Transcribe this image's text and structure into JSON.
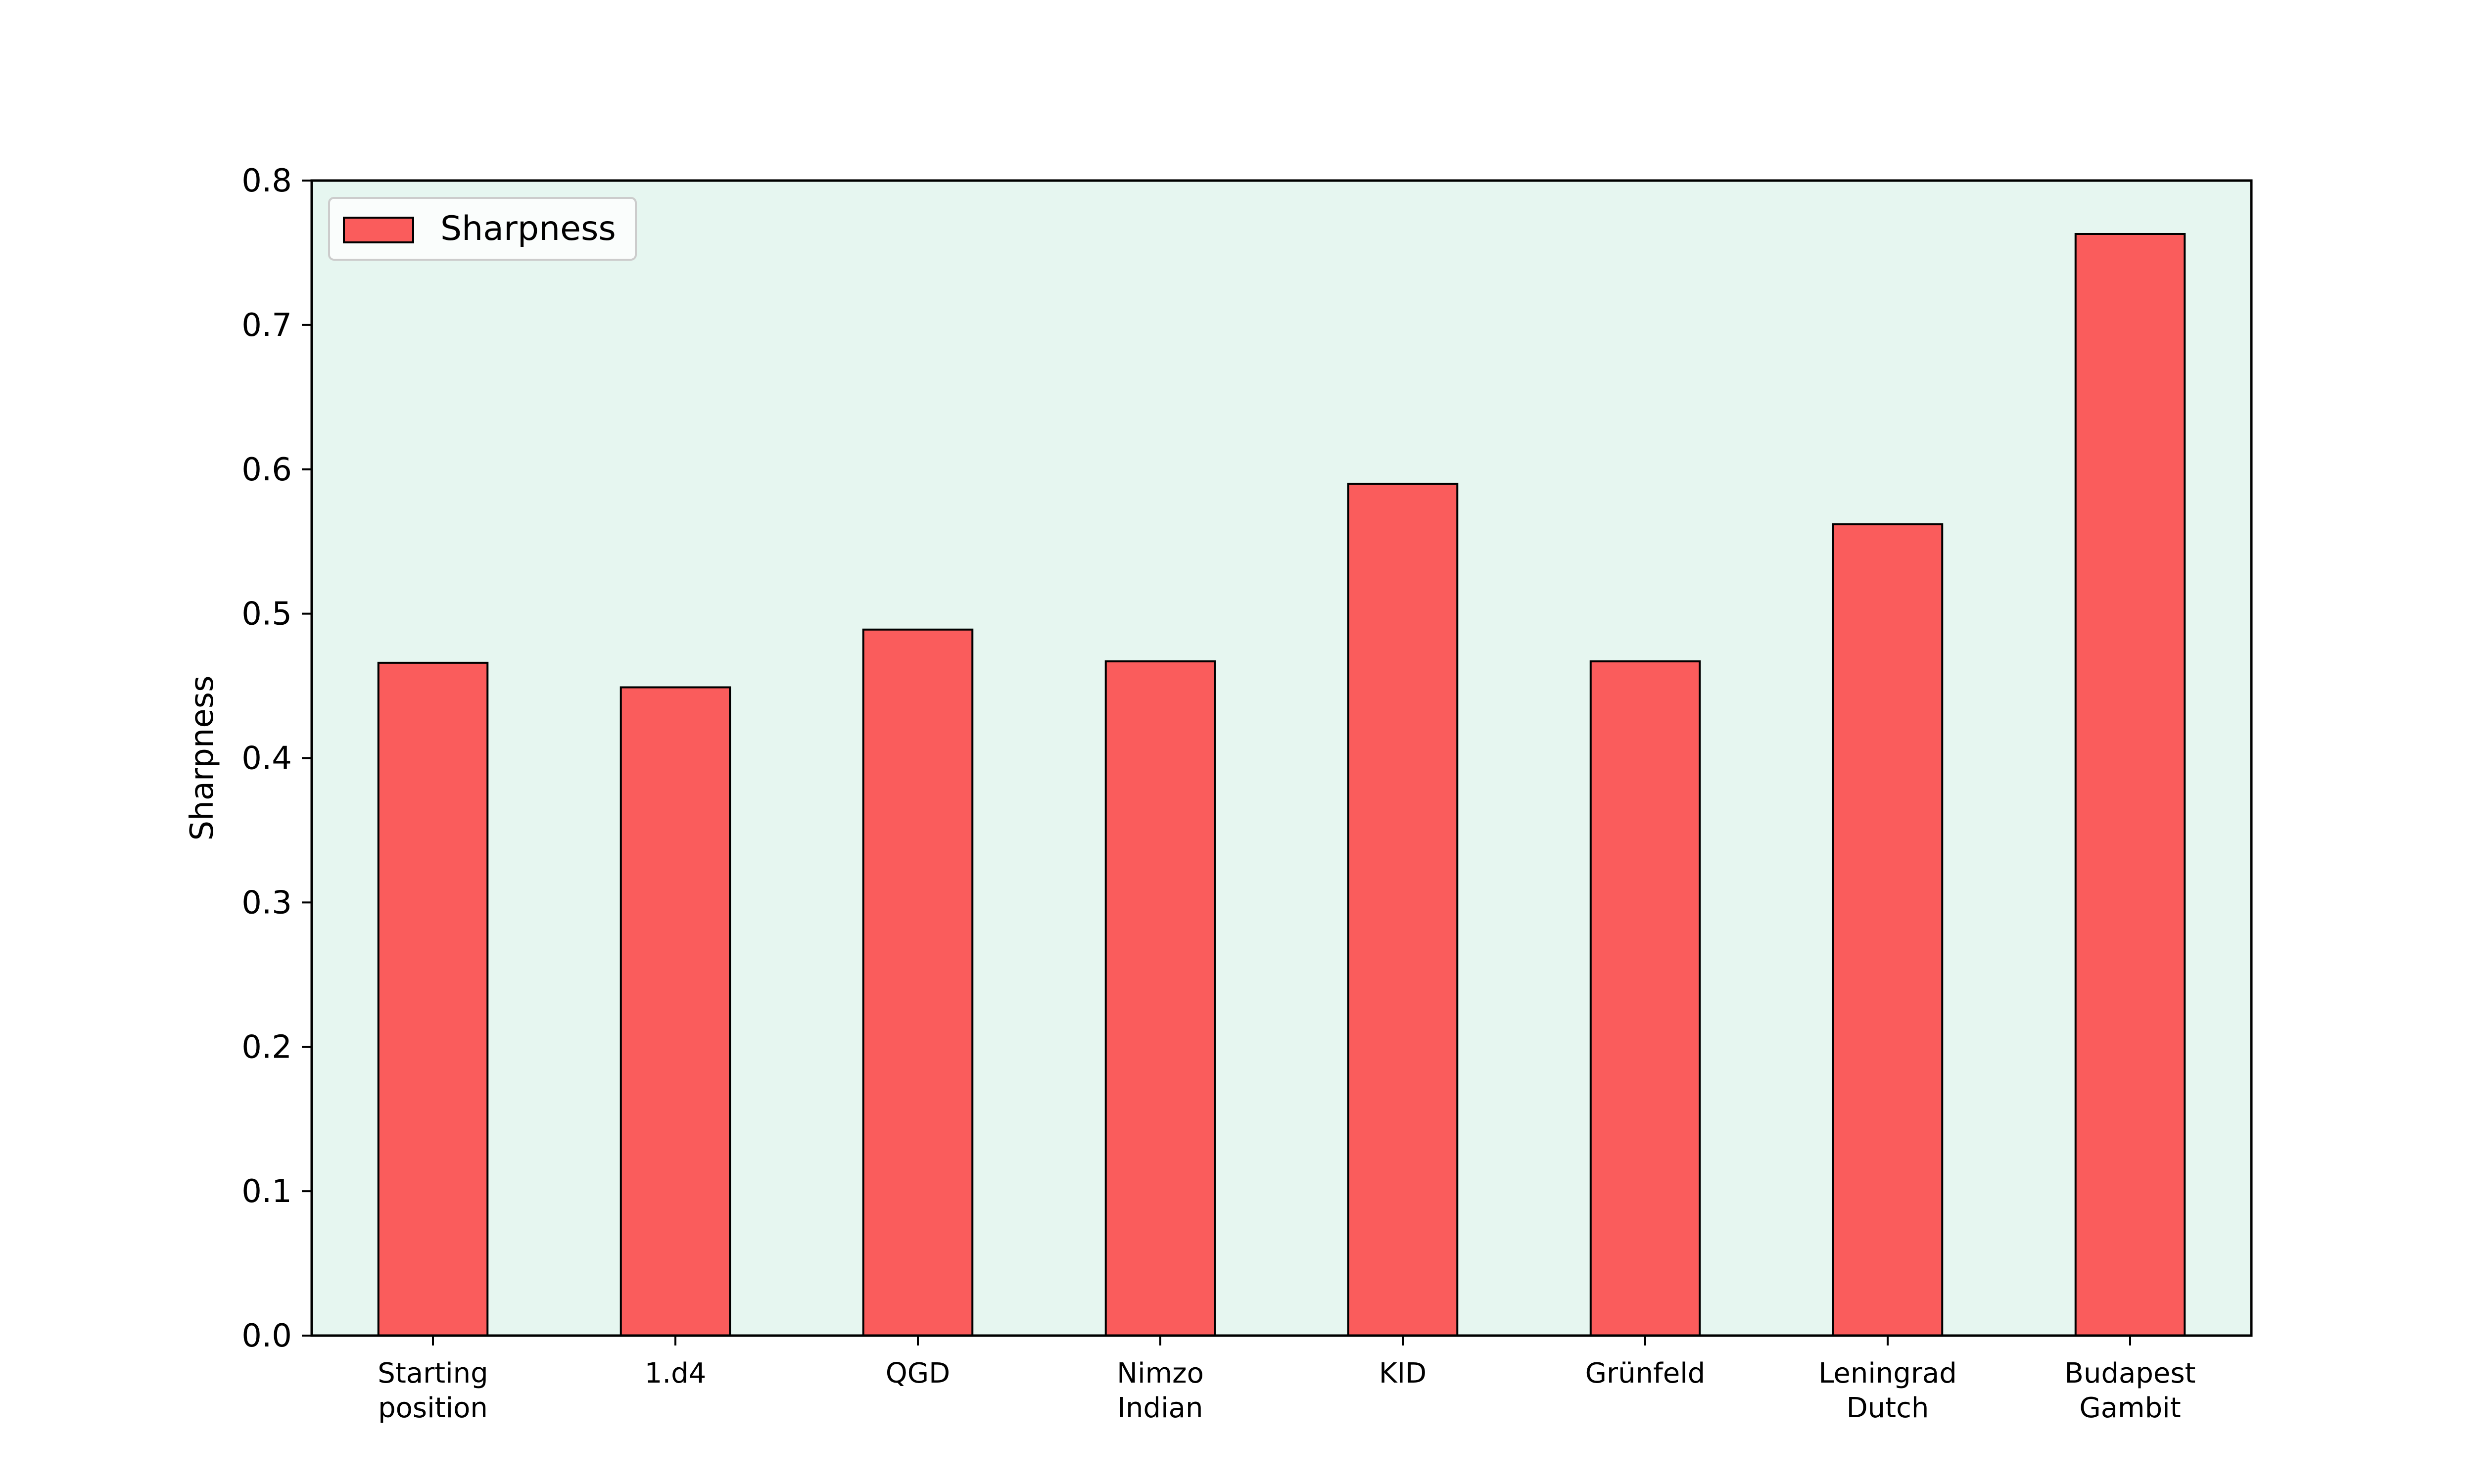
{
  "chart_data": {
    "type": "bar",
    "categories": [
      [
        "Starting",
        "position"
      ],
      [
        "1.d4"
      ],
      [
        "QGD"
      ],
      [
        "Nimzo",
        "Indian"
      ],
      [
        "KID"
      ],
      [
        "Grünfeld"
      ],
      [
        "Leningrad",
        "Dutch"
      ],
      [
        "Budapest",
        "Gambit"
      ]
    ],
    "series": [
      {
        "name": "Sharpness",
        "values": [
          0.466,
          0.449,
          0.489,
          0.467,
          0.59,
          0.467,
          0.562,
          0.763
        ]
      }
    ],
    "ylabel": "Sharpness",
    "xlabel": "",
    "ylim": [
      0,
      0.8
    ],
    "yticks": [
      "0.0",
      "0.1",
      "0.2",
      "0.3",
      "0.4",
      "0.5",
      "0.6",
      "0.7",
      "0.8"
    ],
    "grid": false,
    "legend_position": "top-left",
    "colors": {
      "bar": "#fa5c5c",
      "bar_edge": "#000000",
      "plot_background": "#e6f6f0",
      "axis": "#000000"
    }
  }
}
